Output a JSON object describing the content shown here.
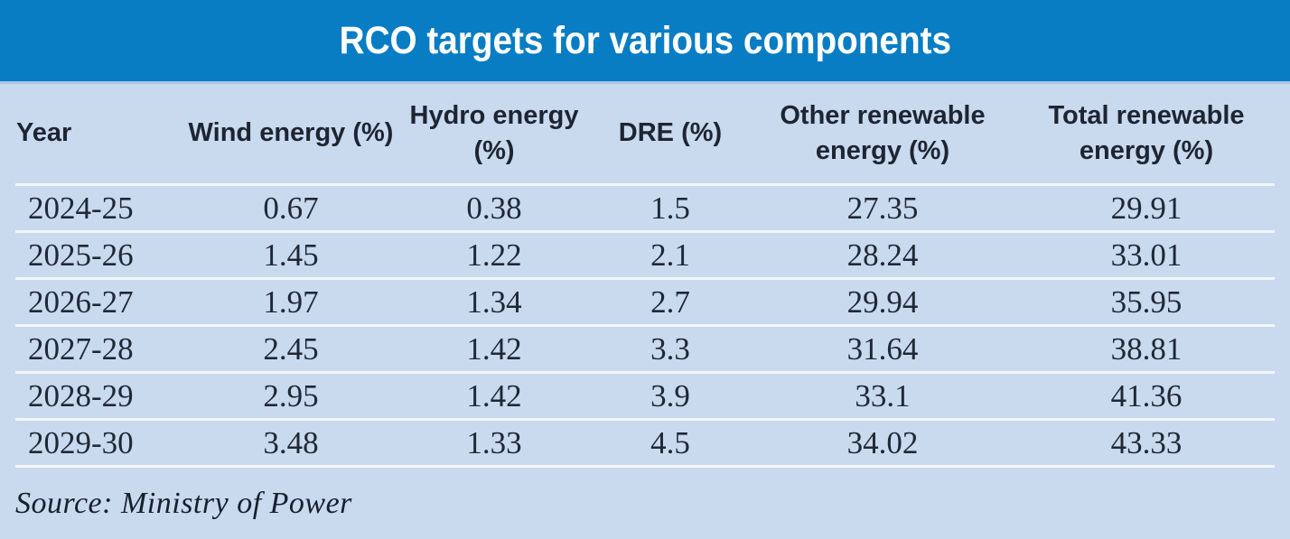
{
  "title": "RCO targets for various components",
  "source_note": "Source: Ministry of Power",
  "colors": {
    "header_bar_blue": "#087dc3",
    "background_light_blue": "#c9d9ee",
    "row_separator_white": "#f2f7fc",
    "title_text_white": "#ffffff",
    "body_text_navy": "#1f2836"
  },
  "table": {
    "columns": [
      "Year",
      "Wind energy (%)",
      "Hydro energy (%)",
      "DRE (%)",
      "Other renewable energy (%)",
      "Total renewable energy (%)"
    ],
    "rows": [
      {
        "year": "2024-25",
        "values": [
          "0.67",
          "0.38",
          "1.5",
          "27.35",
          "29.91"
        ]
      },
      {
        "year": "2025-26",
        "values": [
          "1.45",
          "1.22",
          "2.1",
          "28.24",
          "33.01"
        ]
      },
      {
        "year": "2026-27",
        "values": [
          "1.97",
          "1.34",
          "2.7",
          "29.94",
          "35.95"
        ]
      },
      {
        "year": "2027-28",
        "values": [
          "2.45",
          "1.42",
          "3.3",
          "31.64",
          "38.81"
        ]
      },
      {
        "year": "2028-29",
        "values": [
          "2.95",
          "1.42",
          "3.9",
          "33.1",
          "41.36"
        ]
      },
      {
        "year": "2029-30",
        "values": [
          "3.48",
          "1.33",
          "4.5",
          "34.02",
          "43.33"
        ]
      }
    ]
  },
  "chart_data": {
    "type": "table",
    "title": "RCO targets for various components",
    "categories": [
      "2024-25",
      "2025-26",
      "2026-27",
      "2027-28",
      "2028-29",
      "2029-30"
    ],
    "series": [
      {
        "name": "Wind energy (%)",
        "values": [
          0.67,
          1.45,
          1.97,
          2.45,
          2.95,
          3.48
        ]
      },
      {
        "name": "Hydro energy (%)",
        "values": [
          0.38,
          1.22,
          1.34,
          1.42,
          1.42,
          1.33
        ]
      },
      {
        "name": "DRE (%)",
        "values": [
          1.5,
          2.1,
          2.7,
          3.3,
          3.9,
          4.5
        ]
      },
      {
        "name": "Other renewable energy (%)",
        "values": [
          27.35,
          28.24,
          29.94,
          31.64,
          33.1,
          34.02
        ]
      },
      {
        "name": "Total renewable energy (%)",
        "values": [
          29.91,
          33.01,
          35.95,
          38.81,
          41.36,
          43.33
        ]
      }
    ],
    "source": "Ministry of Power"
  }
}
